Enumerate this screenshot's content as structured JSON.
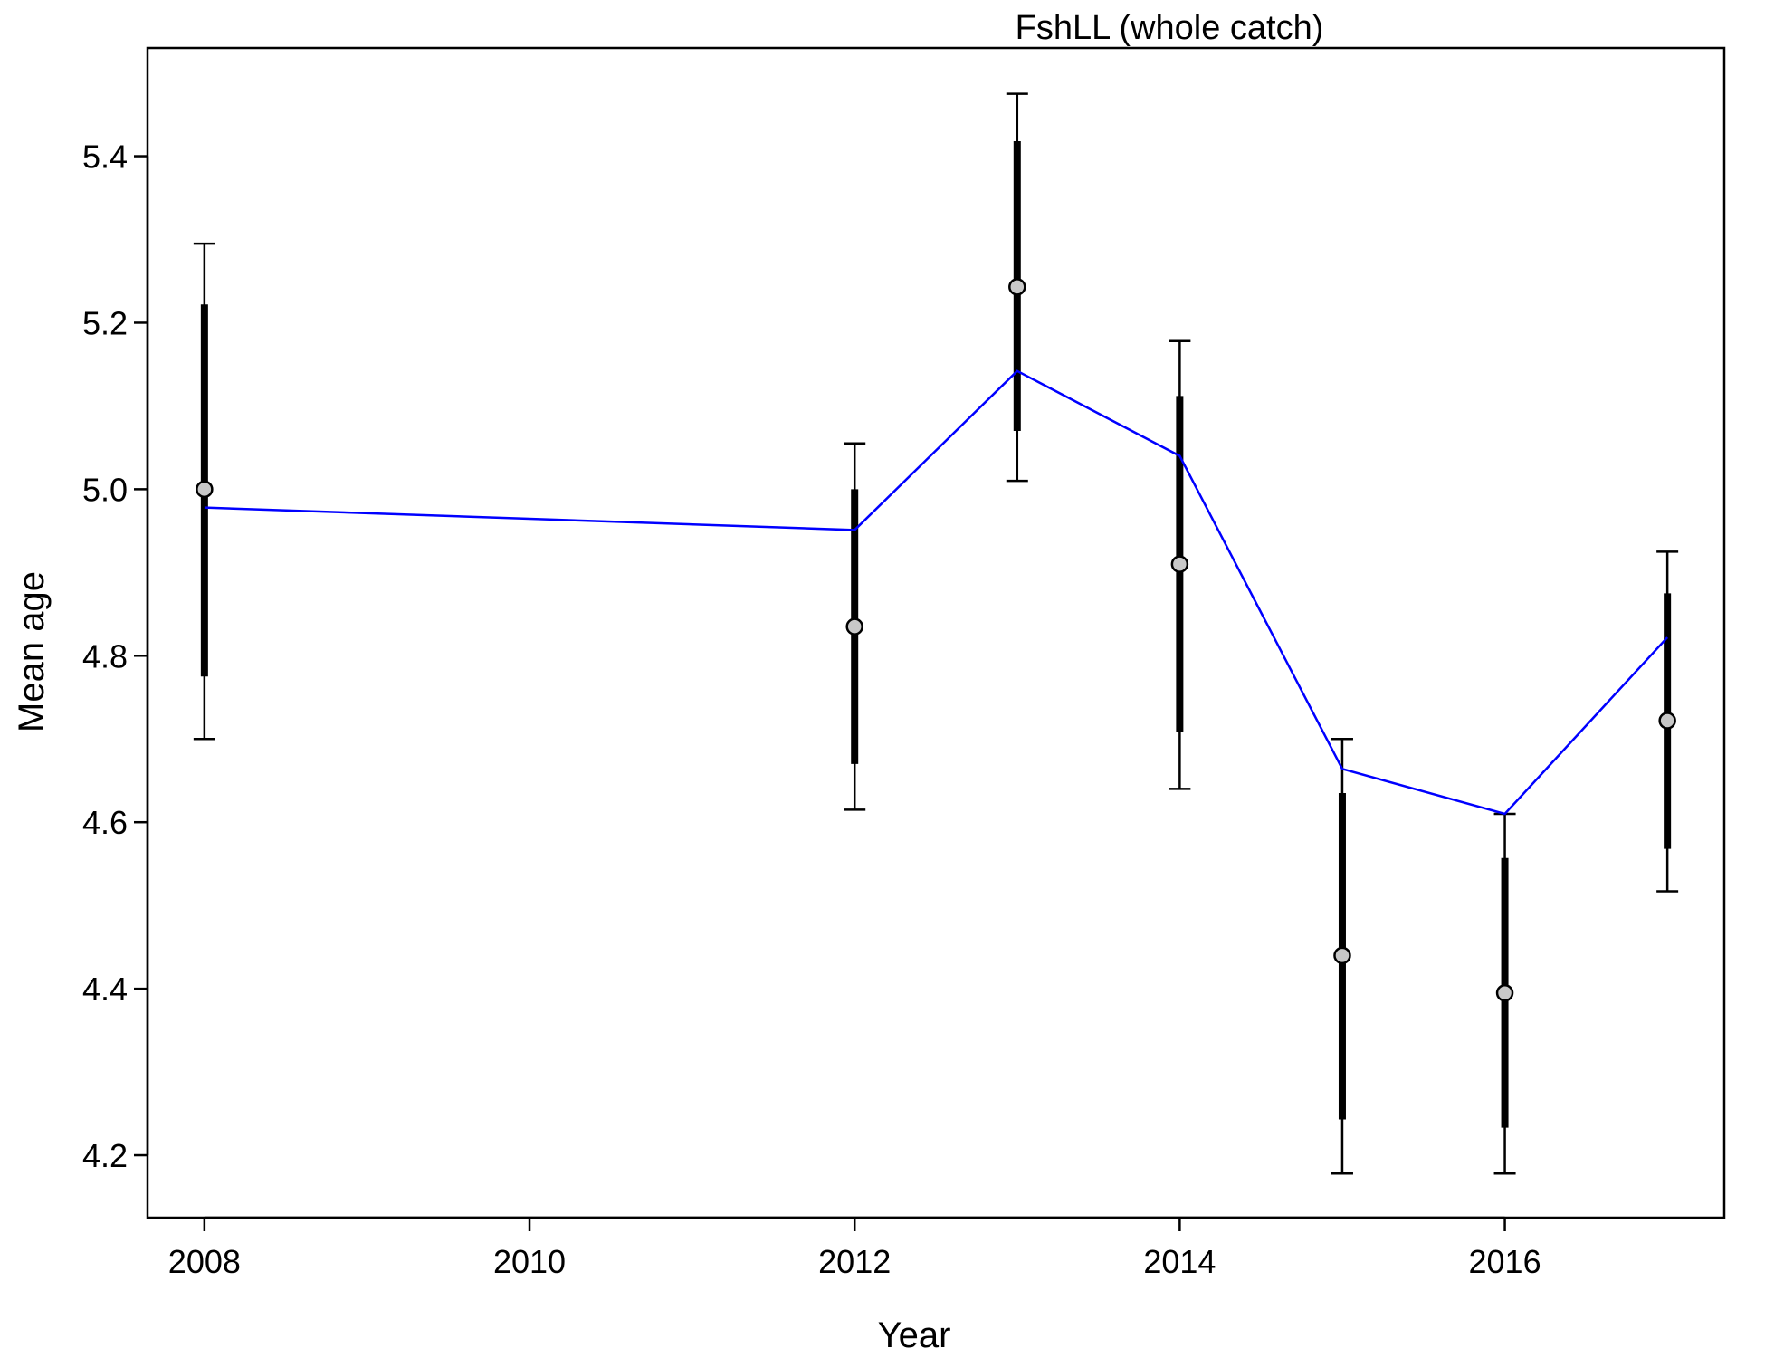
{
  "chart_data": {
    "type": "scatter",
    "title": "FshLL (whole catch)",
    "xlabel": "Year",
    "ylabel": "Mean age",
    "xlim": [
      2007.65,
      2017.35
    ],
    "ylim": [
      4.125,
      5.53
    ],
    "x_ticks": [
      2008,
      2010,
      2012,
      2014,
      2016
    ],
    "x_tick_labels": [
      "2008",
      "2010",
      "2012",
      "2014",
      "2016"
    ],
    "y_ticks": [
      4.2,
      4.4,
      4.6,
      4.8,
      5.0,
      5.2,
      5.4
    ],
    "y_tick_labels": [
      "4.2",
      "4.4",
      "4.6",
      "4.8",
      "5.0",
      "5.2",
      "5.4"
    ],
    "grid": false,
    "legend": "none",
    "observed": {
      "marker_fill": "#c8c8c8",
      "marker_edge": "#000000",
      "points": [
        {
          "x": 2008,
          "y": 5.0,
          "inner_lo": 4.775,
          "inner_hi": 5.222,
          "outer_lo": 4.7,
          "outer_hi": 5.295
        },
        {
          "x": 2012,
          "y": 4.835,
          "inner_lo": 4.67,
          "inner_hi": 5.0,
          "outer_lo": 4.615,
          "outer_hi": 5.055
        },
        {
          "x": 2013,
          "y": 5.243,
          "inner_lo": 5.07,
          "inner_hi": 5.418,
          "outer_lo": 5.01,
          "outer_hi": 5.475
        },
        {
          "x": 2014,
          "y": 4.91,
          "inner_lo": 4.708,
          "inner_hi": 5.112,
          "outer_lo": 4.64,
          "outer_hi": 5.178
        },
        {
          "x": 2015,
          "y": 4.44,
          "inner_lo": 4.243,
          "inner_hi": 4.635,
          "outer_lo": 4.178,
          "outer_hi": 4.7
        },
        {
          "x": 2016,
          "y": 4.395,
          "inner_lo": 4.233,
          "inner_hi": 4.557,
          "outer_lo": 4.178,
          "outer_hi": 4.61
        },
        {
          "x": 2017,
          "y": 4.722,
          "inner_lo": 4.568,
          "inner_hi": 4.875,
          "outer_lo": 4.517,
          "outer_hi": 4.925
        }
      ]
    },
    "expected": {
      "color": "#0000ff",
      "x": [
        2008,
        2012,
        2013,
        2014,
        2015,
        2016,
        2017
      ],
      "y": [
        4.978,
        4.951,
        5.142,
        5.04,
        4.664,
        4.61,
        4.822
      ]
    }
  }
}
